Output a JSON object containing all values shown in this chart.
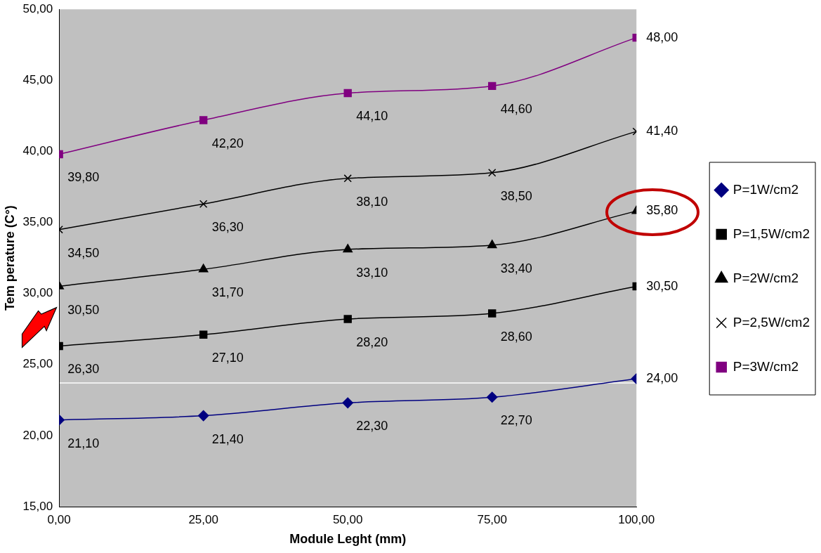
{
  "chart_data": {
    "type": "line",
    "xlabel": "Module Leght (mm)",
    "ylabel": "Tem perature (C°)",
    "x": [
      0,
      25,
      50,
      75,
      100
    ],
    "xlim": [
      0,
      100
    ],
    "xticks": [
      {
        "value": 0,
        "label": "0,00"
      },
      {
        "value": 25,
        "label": "25,00"
      },
      {
        "value": 50,
        "label": "50,00"
      },
      {
        "value": 75,
        "label": "75,00"
      },
      {
        "value": 100,
        "label": "100,00"
      }
    ],
    "ylim": [
      15,
      50
    ],
    "yticks": [
      {
        "value": 15,
        "label": "15,00"
      },
      {
        "value": 20,
        "label": "20,00"
      },
      {
        "value": 25,
        "label": "25,00"
      },
      {
        "value": 30,
        "label": "30,00"
      },
      {
        "value": 35,
        "label": "35,00"
      },
      {
        "value": 40,
        "label": "40,00"
      },
      {
        "value": 45,
        "label": "45,00"
      },
      {
        "value": 50,
        "label": "50,00"
      }
    ],
    "grid": false,
    "legend": "right",
    "ref_lines": [
      {
        "axis": "y",
        "value": 23.7,
        "color": "#ffffff"
      }
    ],
    "series": [
      {
        "name": "P=1W/cm2",
        "color": "#000080",
        "marker": "diamond",
        "values": [
          21.1,
          21.4,
          22.3,
          22.7,
          24.0
        ],
        "value_labels": [
          "21,10",
          "21,40",
          "22,30",
          "22,70",
          "24,00"
        ]
      },
      {
        "name": "P=1,5W/cm2",
        "color": "#000000",
        "marker": "square",
        "values": [
          26.3,
          27.1,
          28.2,
          28.6,
          30.5
        ],
        "value_labels": [
          "26,30",
          "27,10",
          "28,20",
          "28,60",
          "30,50"
        ]
      },
      {
        "name": "P=2W/cm2",
        "color": "#000000",
        "marker": "triangle",
        "values": [
          30.5,
          31.7,
          33.1,
          33.4,
          35.8
        ],
        "value_labels": [
          "30,50",
          "31,70",
          "33,10",
          "33,40",
          "35,80"
        ]
      },
      {
        "name": "P=2,5W/cm2",
        "color": "#000000",
        "marker": "cross",
        "values": [
          34.5,
          36.3,
          38.1,
          38.5,
          41.4
        ],
        "value_labels": [
          "34,50",
          "36,30",
          "38,10",
          "38,50",
          "41,40"
        ]
      },
      {
        "name": "P=3W/cm2",
        "color": "#800080",
        "marker": "square",
        "values": [
          39.8,
          42.2,
          44.1,
          44.6,
          48.0
        ],
        "value_labels": [
          "39,80",
          "42,20",
          "44,10",
          "44,60",
          "48,00"
        ]
      }
    ]
  }
}
